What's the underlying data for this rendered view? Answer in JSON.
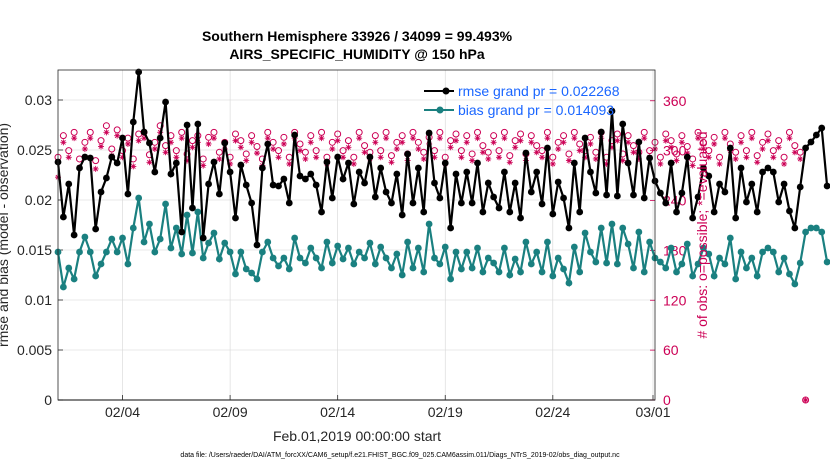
{
  "chart_data": {
    "type": "line",
    "title": "Southern Hemisphere 33926 / 34099 = 99.493%",
    "subtitle": "AIRS_SPECIFIC_HUMIDITY @ 150 hPa",
    "xlabel": "Feb.01,2019 00:00:00 start",
    "ylabel": "rmse and bias (model - observation)",
    "y2label": "# of obs: o=possible; *=evaluated",
    "footer": "data file: /Users/raeder/DAI/ATM_forcXX/CAM6_setup/f.e21.FHIST_BGC.f09_025.CAM6assim.011/Diags_NTrS_2019-02/obs_diag_output.nc",
    "xlim": [
      0,
      27.75
    ],
    "ylim": [
      0,
      0.033
    ],
    "y2lim": [
      0,
      397
    ],
    "x_tick_positions": [
      3,
      8,
      13,
      18,
      23,
      28
    ],
    "x_tick_labels": [
      "02/04",
      "02/09",
      "02/14",
      "02/19",
      "02/24",
      "03/01"
    ],
    "y_ticks": [
      0,
      0.005,
      0.01,
      0.015,
      0.02,
      0.025,
      0.03
    ],
    "y_tick_labels": [
      "0",
      "0.005",
      "0.01",
      "0.015",
      "0.02",
      "0.025",
      "0.03"
    ],
    "y2_ticks": [
      0,
      60,
      120,
      180,
      240,
      300,
      360
    ],
    "x_step": 0.25,
    "series": [
      {
        "name": "rmse",
        "legend": "rmse grand pr = 0.022268",
        "color": "#000000",
        "values": [
          0.0238,
          0.0183,
          0.0216,
          0.0165,
          0.0232,
          0.0243,
          0.0242,
          0.0171,
          0.0208,
          0.0222,
          0.0243,
          0.0237,
          0.0262,
          0.0206,
          0.0278,
          0.0328,
          0.0268,
          0.0257,
          0.0228,
          0.0262,
          0.0298,
          0.0226,
          0.0237,
          0.0168,
          0.0275,
          0.0192,
          0.0276,
          0.0162,
          0.0216,
          0.0238,
          0.0206,
          0.0257,
          0.0228,
          0.0182,
          0.0235,
          0.0215,
          0.0197,
          0.0155,
          0.0232,
          0.0256,
          0.0215,
          0.0214,
          0.0221,
          0.0197,
          0.0265,
          0.0224,
          0.0221,
          0.0226,
          0.0215,
          0.0188,
          0.0238,
          0.0202,
          0.0243,
          0.0221,
          0.0237,
          0.0196,
          0.0228,
          0.0217,
          0.0243,
          0.0203,
          0.0232,
          0.0208,
          0.0197,
          0.0226,
          0.0185,
          0.0246,
          0.0197,
          0.0232,
          0.0188,
          0.0267,
          0.0217,
          0.0202,
          0.0237,
          0.0172,
          0.0226,
          0.0197,
          0.0228,
          0.0197,
          0.0237,
          0.0188,
          0.0217,
          0.0203,
          0.0192,
          0.0228,
          0.0188,
          0.0217,
          0.0182,
          0.0247,
          0.0208,
          0.0228,
          0.0196,
          0.0252,
          0.0186,
          0.0218,
          0.0202,
          0.0172,
          0.0237,
          0.0188,
          0.0262,
          0.0228,
          0.0207,
          0.0268,
          0.0205,
          0.0289,
          0.0204,
          0.0276,
          0.0237,
          0.0205,
          0.0258,
          0.0202,
          0.0242,
          0.0219,
          0.0207,
          0.0197,
          0.0237,
          0.0188,
          0.0207,
          0.0243,
          0.0182,
          0.0203,
          0.0232,
          0.0224,
          0.0188,
          0.0216,
          0.0208,
          0.0252,
          0.0182,
          0.0232,
          0.0198,
          0.0216,
          0.0188,
          0.0228,
          0.0232,
          0.0228,
          0.0198,
          0.0216,
          0.0189,
          0.0172,
          0.0213,
          0.0252,
          0.0258,
          0.0265,
          0.0272,
          0.0214
        ]
      },
      {
        "name": "bias",
        "legend": "bias grand pr = 0.014093",
        "color": "#1a8080",
        "values": [
          0.0148,
          0.0113,
          0.0132,
          0.0121,
          0.0148,
          0.0163,
          0.0148,
          0.0124,
          0.0136,
          0.0148,
          0.0161,
          0.0148,
          0.0162,
          0.0136,
          0.0172,
          0.0202,
          0.0158,
          0.0176,
          0.0148,
          0.0161,
          0.0196,
          0.0152,
          0.0172,
          0.0146,
          0.0185,
          0.0147,
          0.0188,
          0.0142,
          0.0157,
          0.0167,
          0.0141,
          0.0157,
          0.0148,
          0.0126,
          0.0148,
          0.0131,
          0.0127,
          0.0121,
          0.0148,
          0.0158,
          0.0142,
          0.0134,
          0.0142,
          0.0131,
          0.0162,
          0.0142,
          0.0137,
          0.0152,
          0.0142,
          0.0132,
          0.0158,
          0.0137,
          0.0154,
          0.0141,
          0.0152,
          0.0136,
          0.0148,
          0.0142,
          0.0157,
          0.0136,
          0.0153,
          0.0142,
          0.0132,
          0.0146,
          0.0125,
          0.0158,
          0.0132,
          0.0152,
          0.0128,
          0.0176,
          0.0142,
          0.0136,
          0.0153,
          0.0121,
          0.0148,
          0.0131,
          0.0148,
          0.0132,
          0.0152,
          0.0128,
          0.0142,
          0.0137,
          0.0128,
          0.0152,
          0.0125,
          0.0141,
          0.0128,
          0.0158,
          0.0136,
          0.0148,
          0.0128,
          0.0158,
          0.0124,
          0.0142,
          0.0131,
          0.0117,
          0.0153,
          0.0128,
          0.0167,
          0.0148,
          0.0138,
          0.0172,
          0.0137,
          0.0176,
          0.0136,
          0.0172,
          0.0156,
          0.0132,
          0.0168,
          0.0128,
          0.0158,
          0.0142,
          0.0138,
          0.0132,
          0.0152,
          0.0128,
          0.0136,
          0.0156,
          0.0124,
          0.0136,
          0.0152,
          0.0146,
          0.0124,
          0.0142,
          0.0136,
          0.0162,
          0.0121,
          0.0148,
          0.0132,
          0.0142,
          0.0124,
          0.0148,
          0.0152,
          0.0148,
          0.0128,
          0.0142,
          0.0126,
          0.0116,
          0.0137,
          0.0168,
          0.0172,
          0.0172,
          0.0168,
          0.0138
        ]
      },
      {
        "name": "obs possible",
        "marker": "o",
        "axis": "right",
        "color": "#cc0055",
        "values": [
          292,
          318,
          300,
          322,
          290,
          310,
          322,
          288,
          312,
          330,
          302,
          325,
          300,
          315,
          290,
          320,
          322,
          295,
          310,
          330,
          306,
          318,
          300,
          322,
          296,
          312,
          318,
          290,
          316,
          322,
          298,
          310,
          292,
          320,
          312,
          296,
          318,
          305,
          290,
          322,
          310,
          300,
          316,
          292,
          322,
          308,
          298,
          318,
          300,
          322,
          292,
          310,
          320,
          300,
          312,
          292,
          322,
          306,
          298,
          318,
          300,
          322,
          294,
          310,
          318,
          296,
          322,
          310,
          298,
          316,
          300,
          322,
          292,
          312,
          320,
          300,
          318,
          296,
          322,
          306,
          298,
          318,
          300,
          322,
          294,
          312,
          320,
          296,
          318,
          306,
          300,
          322,
          292,
          310,
          318,
          296,
          322,
          308,
          300,
          316,
          298,
          322,
          292,
          312,
          320,
          296,
          318,
          306,
          298,
          322,
          300,
          310,
          292,
          320,
          312,
          296,
          318,
          305,
          290,
          322,
          310,
          300,
          316,
          292,
          322,
          308,
          298,
          318,
          300,
          322,
          294,
          310,
          320,
          300,
          312,
          292,
          322,
          306,
          298,
          0
        ]
      },
      {
        "name": "obs evaluated",
        "marker": "*",
        "axis": "right",
        "color": "#cc0055",
        "values": [
          268,
          310,
          292,
          315,
          280,
          302,
          315,
          278,
          305,
          322,
          294,
          318,
          292,
          308,
          281,
          312,
          315,
          286,
          302,
          322,
          298,
          310,
          292,
          315,
          288,
          304,
          310,
          282,
          308,
          315,
          290,
          302,
          284,
          312,
          304,
          288,
          310,
          297,
          282,
          315,
          302,
          292,
          308,
          284,
          315,
          300,
          290,
          310,
          292,
          315,
          284,
          302,
          312,
          292,
          304,
          284,
          315,
          298,
          290,
          310,
          292,
          315,
          286,
          302,
          310,
          288,
          315,
          302,
          290,
          308,
          292,
          315,
          284,
          304,
          312,
          292,
          310,
          288,
          315,
          298,
          290,
          310,
          292,
          315,
          286,
          304,
          312,
          288,
          310,
          298,
          292,
          315,
          284,
          302,
          310,
          288,
          315,
          300,
          292,
          308,
          290,
          315,
          284,
          304,
          312,
          288,
          310,
          298,
          290,
          315,
          292,
          302,
          284,
          312,
          304,
          288,
          310,
          297,
          282,
          315,
          302,
          292,
          308,
          284,
          315,
          300,
          290,
          310,
          292,
          315,
          286,
          302,
          312,
          292,
          304,
          284,
          315,
          298,
          290,
          0
        ]
      }
    ]
  }
}
